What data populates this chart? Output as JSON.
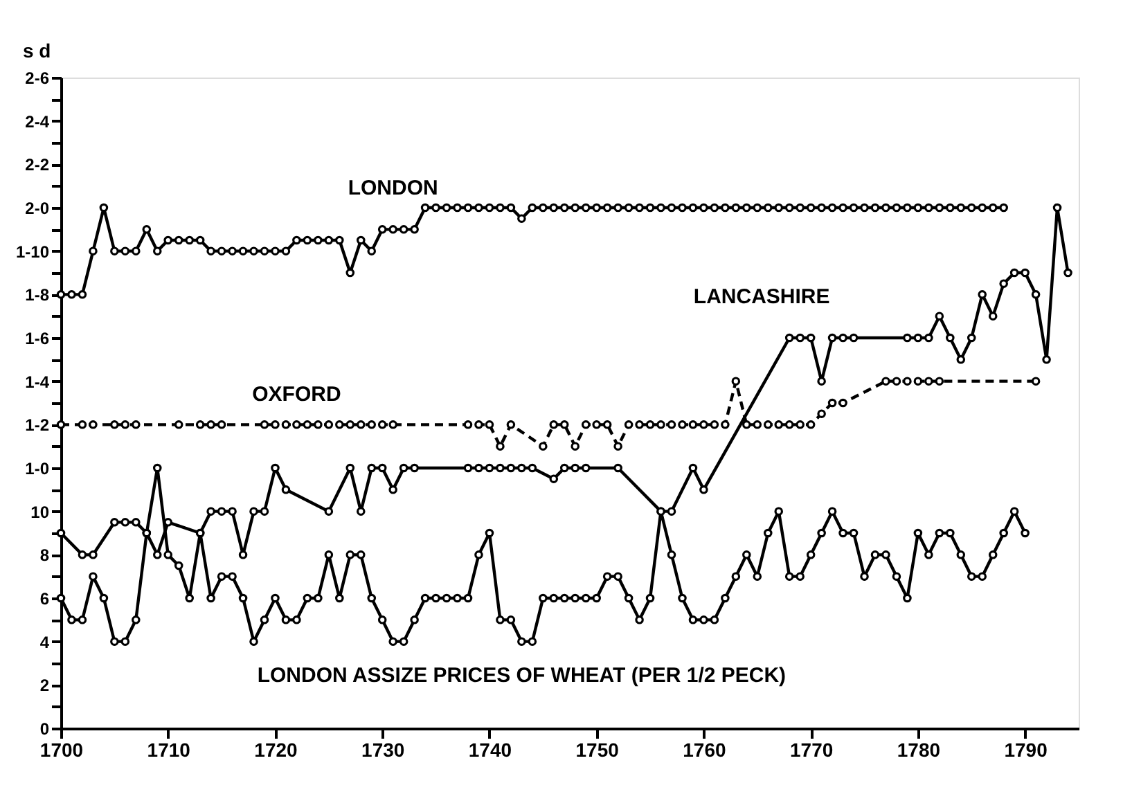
{
  "chart_data": {
    "type": "line",
    "ylabel": "s d",
    "xlim": [
      1700,
      1795
    ],
    "ylim": [
      0,
      30
    ],
    "xticks": [
      1700,
      1710,
      1720,
      1730,
      1740,
      1750,
      1760,
      1770,
      1780,
      1790
    ],
    "yticks": [
      0,
      {
        "value": 1,
        "label": null
      },
      2,
      {
        "value": 3,
        "label": null
      },
      4,
      {
        "value": 5,
        "label": null
      },
      6,
      {
        "value": 7,
        "label": null
      },
      8,
      {
        "value": 9,
        "label": null
      },
      10,
      {
        "value": 11,
        "label": null
      },
      {
        "value": 12,
        "label": "1-0"
      },
      {
        "value": 13,
        "label": null
      },
      {
        "value": 14,
        "label": "1-2"
      },
      {
        "value": 15,
        "label": null
      },
      {
        "value": 16,
        "label": "1-4"
      },
      {
        "value": 17,
        "label": null
      },
      {
        "value": 18,
        "label": "1-6"
      },
      {
        "value": 19,
        "label": null
      },
      {
        "value": 20,
        "label": "1-8"
      },
      {
        "value": 21,
        "label": null
      },
      {
        "value": 22,
        "label": "1-10"
      },
      {
        "value": 23,
        "label": null
      },
      {
        "value": 24,
        "label": "2-0"
      },
      {
        "value": 25,
        "label": null
      },
      {
        "value": 26,
        "label": "2-2"
      },
      {
        "value": 27,
        "label": null
      },
      {
        "value": 28,
        "label": "2-4"
      },
      {
        "value": 29,
        "label": null
      },
      {
        "value": 30,
        "label": "2-6"
      }
    ],
    "grid": false,
    "legend": false,
    "marker": "circle",
    "series": [
      {
        "name": "LONDON",
        "color": "#000000",
        "line_style": "solid",
        "x": [
          1700,
          1701,
          1702,
          1703,
          1704,
          1705,
          1706,
          1707,
          1708,
          1709,
          1710,
          1711,
          1712,
          1713,
          1714,
          1715,
          1716,
          1717,
          1718,
          1719,
          1720,
          1721,
          1722,
          1723,
          1724,
          1725,
          1726,
          1727,
          1728,
          1729,
          1730,
          1731,
          1732,
          1733,
          1734,
          1735,
          1736,
          1737,
          1738,
          1739,
          1740,
          1741,
          1742,
          1743,
          1744,
          1745,
          1746,
          1747,
          1748,
          1749,
          1750,
          1751,
          1752,
          1753,
          1754,
          1755,
          1756,
          1757,
          1758,
          1759,
          1760,
          1761,
          1762,
          1763,
          1764,
          1765,
          1766,
          1767,
          1768,
          1769,
          1770,
          1771,
          1772,
          1773,
          1774,
          1775,
          1776,
          1777,
          1778,
          1779,
          1780,
          1781,
          1782,
          1783,
          1784,
          1785,
          1786,
          1787,
          1788
        ],
        "values": [
          20,
          20,
          20,
          22,
          24,
          22,
          22,
          22,
          23,
          22,
          22.5,
          22.5,
          22.5,
          22.5,
          22,
          22,
          22,
          22,
          22,
          22,
          22,
          22,
          22.5,
          22.5,
          22.5,
          22.5,
          22.5,
          21,
          22.5,
          22,
          23,
          23,
          23,
          23,
          24,
          24,
          24,
          24,
          24,
          24,
          24,
          24,
          24,
          23.5,
          24,
          24,
          24,
          24,
          24,
          24,
          24,
          24,
          24,
          24,
          24,
          24,
          24,
          24,
          24,
          24,
          24,
          24,
          24,
          24,
          24,
          24,
          24,
          24,
          24,
          24,
          24,
          24,
          24,
          24,
          24,
          24,
          24,
          24,
          24,
          24,
          24,
          24,
          24,
          24,
          24,
          24,
          24,
          24,
          24
        ]
      },
      {
        "name": "OXFORD",
        "color": "#000000",
        "line_style": "dashed",
        "x": [
          1700,
          1702,
          1703,
          1705,
          1706,
          1707,
          1711,
          1713,
          1714,
          1715,
          1719,
          1720,
          1721,
          1722,
          1723,
          1724,
          1725,
          1726,
          1727,
          1728,
          1729,
          1730,
          1731,
          1738,
          1739,
          1740,
          1741,
          1742,
          1745,
          1746,
          1747,
          1748,
          1749,
          1750,
          1751,
          1752,
          1753,
          1754,
          1755,
          1756,
          1757,
          1758,
          1759,
          1760,
          1761,
          1762,
          1763,
          1764,
          1765,
          1766,
          1767,
          1768,
          1769,
          1770,
          1771,
          1772,
          1773,
          1777,
          1778,
          1779,
          1780,
          1781,
          1782,
          1791
        ],
        "values": [
          14,
          14,
          14,
          14,
          14,
          14,
          14,
          14,
          14,
          14,
          14,
          14,
          14,
          14,
          14,
          14,
          14,
          14,
          14,
          14,
          14,
          14,
          14,
          14,
          14,
          14,
          13,
          14,
          13,
          14,
          14,
          13,
          14,
          14,
          14,
          13,
          14,
          14,
          14,
          14,
          14,
          14,
          14,
          14,
          14,
          14,
          16,
          14,
          14,
          14,
          14,
          14,
          14,
          14,
          14.5,
          15,
          15,
          16,
          16,
          16,
          16,
          16,
          16,
          16
        ]
      },
      {
        "name": "LANCASHIRE",
        "color": "#000000",
        "line_style": "solid",
        "x": [
          1700,
          1702,
          1703,
          1705,
          1706,
          1707,
          1708,
          1709,
          1710,
          1713,
          1714,
          1715,
          1716,
          1717,
          1718,
          1719,
          1720,
          1721,
          1725,
          1727,
          1728,
          1729,
          1730,
          1731,
          1732,
          1733,
          1738,
          1739,
          1740,
          1741,
          1742,
          1743,
          1744,
          1746,
          1747,
          1748,
          1749,
          1752,
          1756,
          1757,
          1759,
          1760,
          1768,
          1769,
          1770,
          1771,
          1772,
          1773,
          1774,
          1779,
          1780,
          1781,
          1782,
          1783,
          1784,
          1785,
          1786,
          1787,
          1788,
          1789,
          1790,
          1791,
          1792,
          1793,
          1794
        ],
        "values": [
          9,
          8,
          8,
          9.5,
          9.5,
          9.5,
          9,
          8,
          9.5,
          9,
          10,
          10,
          10,
          8,
          10,
          10,
          12,
          11,
          10,
          12,
          10,
          12,
          12,
          11,
          12,
          12,
          12,
          12,
          12,
          12,
          12,
          12,
          12,
          11.5,
          12,
          12,
          12,
          12,
          10,
          10,
          12,
          11,
          18,
          18,
          18,
          16,
          18,
          18,
          18,
          18,
          18,
          18,
          19,
          18,
          17,
          18,
          20,
          19,
          20.5,
          21,
          21,
          20,
          17,
          24,
          21
        ]
      },
      {
        "name": "LONDON ASSIZE PRICES OF WHEAT (PER 1/2 PECK)",
        "color": "#000000",
        "line_style": "solid",
        "x": [
          1700,
          1701,
          1702,
          1703,
          1704,
          1705,
          1706,
          1707,
          1708,
          1709,
          1710,
          1711,
          1712,
          1713,
          1714,
          1715,
          1716,
          1717,
          1718,
          1719,
          1720,
          1721,
          1722,
          1723,
          1724,
          1725,
          1726,
          1727,
          1728,
          1729,
          1730,
          1731,
          1732,
          1733,
          1734,
          1735,
          1736,
          1737,
          1738,
          1739,
          1740,
          1741,
          1742,
          1743,
          1744,
          1745,
          1746,
          1747,
          1748,
          1749,
          1750,
          1751,
          1752,
          1753,
          1754,
          1755,
          1756,
          1757,
          1758,
          1759,
          1760,
          1761,
          1762,
          1763,
          1764,
          1765,
          1766,
          1767,
          1768,
          1769,
          1770,
          1771,
          1772,
          1773,
          1774,
          1775,
          1776,
          1777,
          1778,
          1779,
          1780,
          1781,
          1782,
          1783,
          1784,
          1785,
          1786,
          1787,
          1788,
          1789,
          1790
        ],
        "values": [
          6,
          5,
          5,
          7,
          6,
          4,
          4,
          5,
          9,
          12,
          8,
          7.5,
          6,
          9,
          6,
          7,
          7,
          6,
          4,
          5,
          6,
          5,
          5,
          6,
          6,
          8,
          6,
          8,
          8,
          6,
          5,
          4,
          4,
          5,
          6,
          6,
          6,
          6,
          6,
          8,
          9,
          5,
          5,
          4,
          4,
          6,
          6,
          6,
          6,
          6,
          6,
          7,
          7,
          6,
          5,
          6,
          10,
          8,
          6,
          5,
          5,
          5,
          6,
          7,
          8,
          7,
          9,
          10,
          7,
          7,
          8,
          9,
          10,
          9,
          9,
          7,
          8,
          8,
          7,
          6,
          9,
          8,
          9,
          9,
          8,
          7,
          7,
          8,
          9,
          10,
          9
        ]
      }
    ]
  }
}
